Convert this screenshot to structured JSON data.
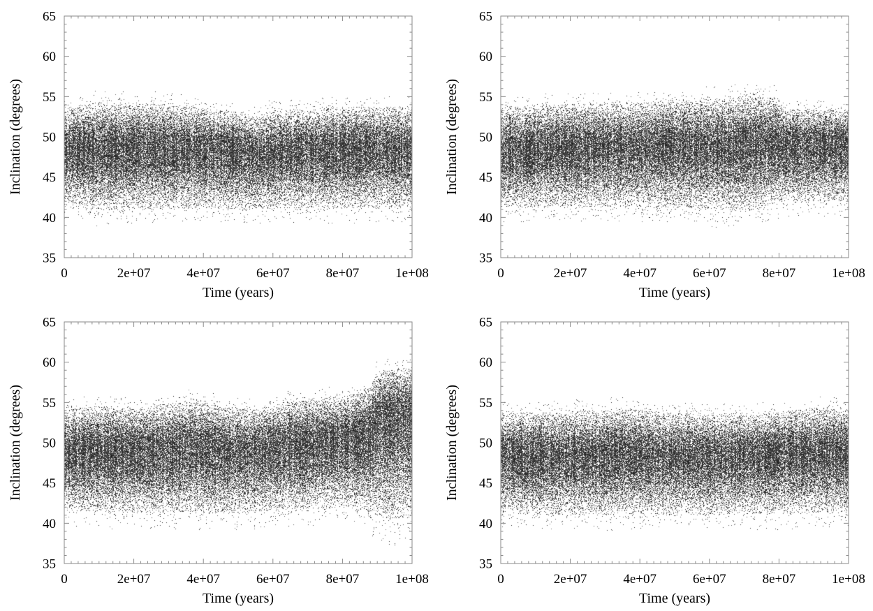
{
  "chart_data": [
    {
      "type": "scatter",
      "panel": "top-left",
      "xlabel": "Time (years)",
      "ylabel": "Inclination (degrees)",
      "xlim": [
        0,
        100000000
      ],
      "ylim": [
        35,
        65
      ],
      "xticks": [
        "0",
        "2e+07",
        "4e+07",
        "6e+07",
        "8e+07",
        "1e+08"
      ],
      "yticks": [
        "35",
        "40",
        "45",
        "50",
        "55",
        "60",
        "65"
      ],
      "grid": false,
      "point_color": "#000000",
      "band": {
        "x": [
          0,
          10000000,
          20000000,
          30000000,
          40000000,
          50000000,
          55000000,
          60000000,
          70000000,
          80000000,
          90000000,
          100000000
        ],
        "center": [
          48.5,
          48.5,
          48.5,
          48.5,
          48.5,
          48.3,
          48.0,
          48.3,
          48.5,
          48.5,
          48.5,
          48.5
        ],
        "upper": [
          54.5,
          55.3,
          55.0,
          55.2,
          54.5,
          54.0,
          53.3,
          54.2,
          54.3,
          54.6,
          54.7,
          54.5
        ],
        "lower": [
          40.3,
          39.6,
          39.8,
          39.8,
          39.9,
          39.6,
          39.8,
          39.8,
          39.9,
          39.9,
          40.0,
          40.0
        ]
      }
    },
    {
      "type": "scatter",
      "panel": "top-right",
      "xlabel": "Time (years)",
      "ylabel": "Inclination (degrees)",
      "xlim": [
        0,
        100000000
      ],
      "ylim": [
        35,
        65
      ],
      "xticks": [
        "0",
        "2e+07",
        "4e+07",
        "6e+07",
        "8e+07",
        "1e+08"
      ],
      "yticks": [
        "35",
        "40",
        "45",
        "50",
        "55",
        "60",
        "65"
      ],
      "grid": false,
      "point_color": "#000000",
      "band": {
        "x": [
          0,
          10000000,
          20000000,
          30000000,
          40000000,
          50000000,
          60000000,
          65000000,
          70000000,
          80000000,
          82000000,
          90000000,
          100000000
        ],
        "center": [
          48.5,
          48.5,
          48.8,
          48.8,
          48.8,
          49.0,
          49.0,
          49.0,
          49.2,
          49.2,
          49.0,
          49.0,
          49.0
        ],
        "upper": [
          54.5,
          54.8,
          55.0,
          55.0,
          55.1,
          55.6,
          55.8,
          55.8,
          56.1,
          55.8,
          54.3,
          54.2,
          54.0
        ],
        "lower": [
          40.0,
          40.0,
          40.0,
          40.0,
          40.0,
          40.0,
          39.5,
          39.4,
          39.2,
          40.5,
          40.8,
          40.8,
          40.8
        ]
      }
    },
    {
      "type": "scatter",
      "panel": "bottom-left",
      "xlabel": "Time (years)",
      "ylabel": "Inclination (degrees)",
      "xlim": [
        0,
        100000000
      ],
      "ylim": [
        35,
        65
      ],
      "xticks": [
        "0",
        "2e+07",
        "4e+07",
        "6e+07",
        "8e+07",
        "1e+08"
      ],
      "yticks": [
        "35",
        "40",
        "45",
        "50",
        "55",
        "60",
        "65"
      ],
      "grid": false,
      "point_color": "#000000",
      "band": {
        "x": [
          0,
          10000000,
          20000000,
          30000000,
          38000000,
          45000000,
          55000000,
          65000000,
          75000000,
          85000000,
          88000000,
          90000000,
          95000000,
          100000000
        ],
        "center": [
          49.0,
          49.2,
          49.0,
          49.2,
          49.5,
          49.3,
          49.3,
          49.8,
          50.2,
          51.0,
          51.5,
          53.5,
          53.8,
          54.0
        ],
        "upper": [
          55.0,
          55.5,
          55.3,
          55.8,
          56.5,
          55.5,
          55.0,
          56.2,
          56.5,
          57.0,
          58.0,
          59.8,
          60.3,
          60.3
        ],
        "lower": [
          40.3,
          40.0,
          40.0,
          40.0,
          39.8,
          39.8,
          40.0,
          40.3,
          40.5,
          40.5,
          39.5,
          38.5,
          38.2,
          38.5
        ]
      }
    },
    {
      "type": "scatter",
      "panel": "bottom-right",
      "xlabel": "Time (years)",
      "ylabel": "Inclination (degrees)",
      "xlim": [
        0,
        100000000
      ],
      "ylim": [
        35,
        65
      ],
      "xticks": [
        "0",
        "2e+07",
        "4e+07",
        "6e+07",
        "8e+07",
        "1e+08"
      ],
      "yticks": [
        "35",
        "40",
        "45",
        "50",
        "55",
        "60",
        "65"
      ],
      "grid": false,
      "point_color": "#000000",
      "band": {
        "x": [
          0,
          10000000,
          20000000,
          30000000,
          35000000,
          45000000,
          55000000,
          65000000,
          75000000,
          85000000,
          95000000,
          100000000
        ],
        "center": [
          48.5,
          48.5,
          48.5,
          48.5,
          48.7,
          48.5,
          48.5,
          48.5,
          48.5,
          48.8,
          49.0,
          49.0
        ],
        "upper": [
          54.5,
          54.8,
          54.8,
          55.0,
          55.3,
          54.8,
          54.5,
          54.5,
          54.5,
          55.0,
          55.3,
          55.0
        ],
        "lower": [
          40.0,
          39.8,
          39.8,
          39.8,
          39.8,
          39.8,
          39.8,
          39.8,
          39.8,
          40.0,
          40.0,
          40.0
        ]
      }
    }
  ]
}
